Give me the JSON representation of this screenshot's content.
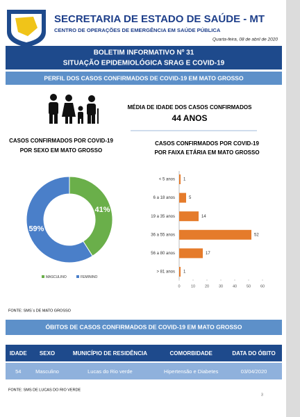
{
  "header": {
    "title": "SECRETARIA DE ESTADO DE SAÚDE - MT",
    "subtitle": "CENTRO DE OPERAÇÕES DE EMERGÊNCIA EM SAÚDE PÚBLICA",
    "date": "Quarta-feira, 08 de abril de 2020"
  },
  "bulletin": {
    "title": "BOLETIM INFORMATIVO Nº 31",
    "subtitle": "SITUAÇÃO EPIDEMIOLÓGICA SRAG E COVID-19"
  },
  "profile": {
    "title": "PERFIL DOS CASOS CONFIRMADOS DE COVID-19 EM MATO GROSSO",
    "average_label": "MÉDIA DE IDADE DOS CASOS CONFIRMADOS",
    "average_value": "44 ANOS"
  },
  "sex_chart": {
    "type": "donut",
    "title": [
      "CASOS CONFIRMADOS POR COVID-19",
      "POR SEXO EM MATO GROSSO"
    ],
    "categories": [
      "MASCULINO",
      "FEMININO"
    ],
    "values": [
      41,
      59
    ],
    "value_labels": [
      "41%",
      "59%"
    ],
    "colors": [
      "#6aaf4a",
      "#4a7fc9"
    ]
  },
  "age_chart": {
    "type": "bar",
    "title": [
      "CASOS CONFIRMADOS POR COVID-19",
      "POR FAIXA ETÁRIA EM MATO GROSSO"
    ],
    "categories": [
      "< 5 anos",
      "6 a 18 anos",
      "19 a 35 anos",
      "36 a 55 anos",
      "56 a 80 anos",
      "> 81 anos"
    ],
    "values": [
      1,
      5,
      14,
      52,
      17,
      1
    ],
    "color": "#e57b2b",
    "xlim": [
      0,
      60
    ],
    "xticks": [
      0,
      10,
      20,
      30,
      40,
      50,
      60
    ]
  },
  "sources": [
    "FONTE: SMS´s DE MATO GROSSO",
    "FONTE: SMS DE LUCAS DO RIO VERDE"
  ],
  "deaths": {
    "title": "ÓBITOS DE CASOS CONFIRMADOS DE COVID-19 EM MATO GROSSO"
  },
  "table": {
    "header": [
      "IDADE",
      "SEXO",
      "MUNICÍPIO DE RESIDÊNCIA",
      "COMORBIDADE",
      "DATA DO ÓBITO"
    ],
    "rows": [
      [
        "54",
        "Masculino",
        "Lucas do Rio verde",
        "Hipertensão e Diabetes",
        "03/04/2020"
      ]
    ]
  },
  "page_number": "3"
}
